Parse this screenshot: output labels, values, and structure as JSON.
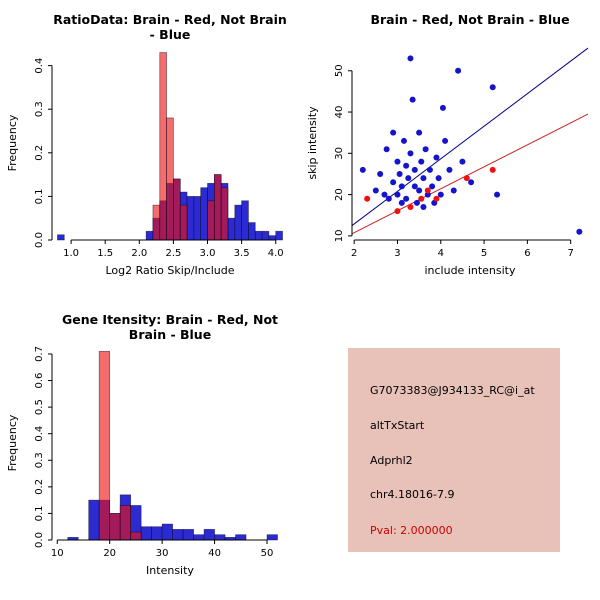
{
  "window": {
    "background": "#FFFFFF"
  },
  "colors": {
    "brain": "#EE1111",
    "not_brain": "#1414CC",
    "overlap_note": "purple where red overlaps blue",
    "panel_bg": "#E8C2B8",
    "pval_text": "#CC0000",
    "axis": "#000000"
  },
  "info_panel": {
    "lines": [
      {
        "text": "G7073383@J934133_RC@i_at",
        "color": "#000000"
      },
      {
        "text": "altTxStart",
        "color": "#000000"
      },
      {
        "text": "Adprhl2",
        "color": "#000000"
      },
      {
        "text": "chr4.18016-7.9",
        "color": "#000000"
      },
      {
        "text": "Pval: 2.000000",
        "color": "#CC0000"
      }
    ]
  },
  "chart_data": [
    {
      "type": "bar",
      "subtype": "histogram",
      "title": "RatioData: Brain - Red, Not Brain - Blue",
      "xlabel": "Log2 Ratio Skip/Include",
      "ylabel": "Frequency",
      "xlim": [
        0.72,
        4.18
      ],
      "ylim": [
        0,
        0.445
      ],
      "xticks": [
        1.0,
        1.5,
        2.0,
        2.5,
        3.0,
        3.5,
        4.0
      ],
      "xtick_labels": [
        "1.0",
        "1.5",
        "2.0",
        "2.5",
        "3.0",
        "3.5",
        "4.0"
      ],
      "yticks": [
        0,
        0.1,
        0.2,
        0.3,
        0.4
      ],
      "ytick_labels": [
        "0.0",
        "0.1",
        "0.2",
        "0.3",
        "0.4"
      ],
      "legend_position": "none",
      "grid": false,
      "series": [
        {
          "name": "Not Brain",
          "color": "#1414CC",
          "opacity": 0.9,
          "bin_start": 0.8,
          "bin_width": 0.1,
          "values": [
            0.012,
            0,
            0,
            0,
            0,
            0,
            0,
            0,
            0,
            0,
            0,
            0,
            0,
            0.02,
            0.05,
            0.09,
            0.13,
            0.14,
            0.11,
            0.1,
            0.1,
            0.12,
            0.13,
            0.15,
            0.13,
            0.05,
            0.08,
            0.09,
            0.04,
            0.02,
            0.02,
            0.01,
            0.02
          ]
        },
        {
          "name": "Brain",
          "color": "#EE1111",
          "opacity": 0.62,
          "bin_start": 2.2,
          "bin_width": 0.1,
          "values": [
            0.08,
            0.43,
            0.28,
            0.14,
            0.08,
            0,
            0,
            0,
            0.09,
            0.15,
            0.12
          ]
        }
      ]
    },
    {
      "type": "scatter",
      "title": "Brain - Red, Not Brain - Blue",
      "xlabel": "include intensity",
      "ylabel": "skip intensity",
      "xlim": [
        1.95,
        7.4
      ],
      "ylim": [
        9,
        56
      ],
      "xticks": [
        2,
        3,
        4,
        5,
        6,
        7
      ],
      "xtick_labels": [
        "2",
        "3",
        "4",
        "5",
        "6",
        "7"
      ],
      "yticks": [
        10,
        20,
        30,
        40,
        50
      ],
      "ytick_labels": [
        "10",
        "20",
        "30",
        "40",
        "50"
      ],
      "legend_position": "none",
      "grid": false,
      "series": [
        {
          "name": "Not Brain",
          "color": "#1414CC",
          "points": [
            [
              2.2,
              26
            ],
            [
              2.5,
              21
            ],
            [
              2.6,
              25
            ],
            [
              2.7,
              20
            ],
            [
              2.75,
              31
            ],
            [
              2.8,
              19
            ],
            [
              2.9,
              23
            ],
            [
              2.9,
              35
            ],
            [
              3.0,
              20
            ],
            [
              3.0,
              28
            ],
            [
              3.05,
              25
            ],
            [
              3.1,
              18
            ],
            [
              3.1,
              22
            ],
            [
              3.15,
              33
            ],
            [
              3.2,
              27
            ],
            [
              3.2,
              19
            ],
            [
              3.25,
              24
            ],
            [
              3.3,
              53
            ],
            [
              3.3,
              30
            ],
            [
              3.35,
              43
            ],
            [
              3.4,
              22
            ],
            [
              3.4,
              26
            ],
            [
              3.45,
              18
            ],
            [
              3.5,
              35
            ],
            [
              3.5,
              21
            ],
            [
              3.55,
              28
            ],
            [
              3.6,
              24
            ],
            [
              3.6,
              17
            ],
            [
              3.65,
              31
            ],
            [
              3.7,
              20
            ],
            [
              3.75,
              26
            ],
            [
              3.8,
              22
            ],
            [
              3.85,
              18
            ],
            [
              3.9,
              29
            ],
            [
              3.95,
              24
            ],
            [
              4.0,
              20
            ],
            [
              4.05,
              41
            ],
            [
              4.1,
              33
            ],
            [
              4.2,
              26
            ],
            [
              4.3,
              21
            ],
            [
              4.4,
              50
            ],
            [
              4.5,
              28
            ],
            [
              4.7,
              23
            ],
            [
              5.2,
              46
            ],
            [
              5.3,
              20
            ],
            [
              7.2,
              11
            ]
          ]
        },
        {
          "name": "Brain",
          "color": "#EE1111",
          "points": [
            [
              2.3,
              19
            ],
            [
              3.0,
              16
            ],
            [
              3.3,
              17
            ],
            [
              3.55,
              19
            ],
            [
              3.7,
              21
            ],
            [
              3.9,
              19
            ],
            [
              4.6,
              24
            ],
            [
              5.2,
              26
            ]
          ]
        }
      ],
      "lines": [
        {
          "name": "not-brain-fit",
          "color": "#00008B",
          "x1": 1.95,
          "y1": 12.5,
          "x2": 7.4,
          "y2": 55.5
        },
        {
          "name": "brain-fit",
          "color": "#CC2222",
          "x1": 1.95,
          "y1": 10.5,
          "x2": 7.4,
          "y2": 39.5
        }
      ]
    },
    {
      "type": "bar",
      "subtype": "histogram",
      "title": "Gene Itensity: Brain - Red, Not Brain - Blue",
      "xlabel": "Intensity",
      "ylabel": "Frequency",
      "xlim": [
        9,
        54
      ],
      "ylim": [
        0,
        0.73
      ],
      "xticks": [
        10,
        20,
        30,
        40,
        50
      ],
      "xtick_labels": [
        "10",
        "20",
        "30",
        "40",
        "50"
      ],
      "yticks": [
        0,
        0.1,
        0.2,
        0.3,
        0.4,
        0.5,
        0.6,
        0.7
      ],
      "ytick_labels": [
        "0.0",
        "0.1",
        "0.2",
        "0.3",
        "0.4",
        "0.5",
        "0.6",
        "0.7"
      ],
      "legend_position": "none",
      "grid": false,
      "series": [
        {
          "name": "Not Brain",
          "color": "#1414CC",
          "opacity": 0.9,
          "bin_start": 12,
          "bin_width": 2,
          "values": [
            0.01,
            0,
            0.15,
            0.15,
            0.1,
            0.17,
            0.13,
            0.05,
            0.05,
            0.06,
            0.04,
            0.04,
            0.02,
            0.04,
            0.02,
            0.01,
            0.02,
            0,
            0,
            0.02
          ]
        },
        {
          "name": "Brain",
          "color": "#EE1111",
          "opacity": 0.62,
          "bin_start": 18,
          "bin_width": 2,
          "values": [
            0.71,
            0.1,
            0.13,
            0.03
          ]
        }
      ]
    }
  ]
}
